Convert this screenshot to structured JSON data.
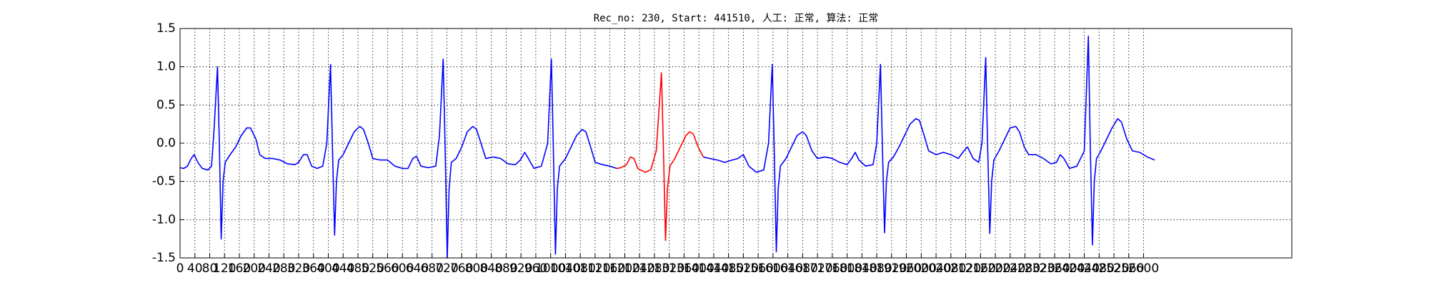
{
  "chart_data": {
    "type": "line",
    "title": "Rec_no: 230, Start: 441510, 人工: 正常, 算法: 正常",
    "xlim": [
      0,
      3000
    ],
    "ylim": [
      -1.5,
      1.5
    ],
    "grid": true,
    "xticks": [
      0,
      40,
      80,
      120,
      160,
      200,
      240,
      280,
      320,
      360,
      400,
      440,
      480,
      520,
      560,
      600,
      640,
      680,
      720,
      760,
      800,
      840,
      880,
      920,
      960,
      1000,
      1040,
      1080,
      1120,
      1160,
      1200,
      1240,
      1280,
      1320,
      1360,
      1400,
      1440,
      1480,
      1520,
      1560,
      1600,
      1640,
      1680,
      1720,
      1760,
      1800,
      1840,
      1880,
      1920,
      1960,
      2000,
      2040,
      2080,
      2120,
      2160,
      2200,
      2240,
      2280,
      2320,
      2360,
      2400,
      2440,
      2480,
      2520,
      2560,
      2600
    ],
    "yticks": [
      -1.5,
      {
        "value": -1.0,
        "label": "-1.0"
      },
      -0.5,
      {
        "value": 0.0,
        "label": "0.0"
      },
      0.5,
      {
        "value": 1.0,
        "label": "1.0"
      },
      1.5
    ],
    "series": [
      {
        "color": "#0000ff",
        "x": [
          0,
          10,
          20,
          30,
          38,
          48,
          60,
          75,
          85,
          92,
          101,
          106,
          111,
          116,
          122,
          135,
          150,
          165,
          180,
          190,
          205,
          215,
          230,
          250,
          270,
          290,
          310,
          320,
          333,
          343,
          355,
          370,
          385,
          396,
          406,
          411,
          417,
          422,
          428,
          440,
          455,
          470,
          485,
          495,
          508,
          520,
          540,
          560,
          580,
          600,
          615,
          628,
          638,
          650,
          670,
          690,
          700,
          710,
          715,
          721,
          726,
          732,
          745,
          760,
          775,
          790,
          800,
          812,
          825,
          845,
          865,
          885,
          905,
          918,
          930,
          940,
          955,
          975,
          992,
          1002,
          1007,
          1013,
          1018,
          1024,
          1040,
          1055,
          1070,
          1085,
          1095,
          1108,
          1120,
          1140,
          1160,
          1178,
          1300,
          1412,
          1430,
          1450,
          1470,
          1490,
          1505,
          1520,
          1535,
          1555,
          1575,
          1588,
          1598,
          1603,
          1609,
          1614,
          1620,
          1635,
          1650,
          1665,
          1680,
          1690,
          1705,
          1720,
          1740,
          1760,
          1780,
          1800,
          1812,
          1822,
          1832,
          1850,
          1870,
          1880,
          1890,
          1895,
          1901,
          1906,
          1912,
          1925,
          1940,
          1955,
          1970,
          1985,
          1995,
          2008,
          2020,
          2040,
          2060,
          2080,
          2100,
          2115,
          2125,
          2140,
          2155,
          2164,
          2174,
          2179,
          2185,
          2190,
          2196,
          2210,
          2225,
          2240,
          2255,
          2265,
          2278,
          2290,
          2310,
          2330,
          2350,
          2365,
          2375,
          2385,
          2400,
          2420,
          2440,
          2451,
          2456,
          2462,
          2467,
          2473,
          2485,
          2500,
          2515,
          2530,
          2540,
          2555,
          2570,
          2590,
          2610,
          2630
        ],
        "values": [
          -0.32,
          -0.33,
          -0.3,
          -0.2,
          -0.15,
          -0.25,
          -0.33,
          -0.35,
          -0.3,
          0.2,
          1.0,
          0.0,
          -1.25,
          -0.5,
          -0.25,
          -0.15,
          -0.05,
          0.1,
          0.2,
          0.2,
          0.05,
          -0.15,
          -0.2,
          -0.2,
          -0.22,
          -0.27,
          -0.28,
          -0.25,
          -0.15,
          -0.15,
          -0.3,
          -0.33,
          -0.3,
          0.0,
          1.03,
          0.0,
          -1.2,
          -0.5,
          -0.22,
          -0.15,
          0.0,
          0.15,
          0.22,
          0.18,
          0.0,
          -0.2,
          -0.22,
          -0.22,
          -0.3,
          -0.33,
          -0.33,
          -0.2,
          -0.17,
          -0.3,
          -0.32,
          -0.3,
          0.1,
          1.1,
          0.0,
          -1.5,
          -0.6,
          -0.25,
          -0.2,
          -0.05,
          0.15,
          0.22,
          0.18,
          0.0,
          -0.2,
          -0.18,
          -0.2,
          -0.27,
          -0.28,
          -0.22,
          -0.12,
          -0.2,
          -0.33,
          -0.3,
          0.0,
          1.1,
          0.0,
          -1.45,
          -0.6,
          -0.3,
          -0.2,
          -0.05,
          0.1,
          0.18,
          0.15,
          -0.05,
          -0.25,
          -0.28,
          -0.3,
          -0.33,
          null,
          -0.18,
          -0.2,
          -0.22,
          -0.25,
          -0.22,
          -0.2,
          -0.15,
          -0.3,
          -0.38,
          -0.35,
          0.0,
          1.03,
          0.0,
          -1.42,
          -0.6,
          -0.3,
          -0.2,
          -0.05,
          0.1,
          0.15,
          0.1,
          -0.1,
          -0.2,
          -0.18,
          -0.2,
          -0.25,
          -0.28,
          -0.2,
          -0.12,
          -0.22,
          -0.3,
          -0.28,
          0.0,
          1.03,
          0.0,
          -1.17,
          -0.5,
          -0.25,
          -0.18,
          -0.05,
          0.1,
          0.25,
          0.32,
          0.3,
          0.1,
          -0.1,
          -0.15,
          -0.12,
          -0.15,
          -0.2,
          -0.1,
          -0.05,
          -0.2,
          -0.25,
          0.0,
          1.12,
          0.0,
          -1.18,
          -0.5,
          -0.22,
          -0.1,
          0.05,
          0.2,
          0.22,
          0.15,
          -0.05,
          -0.15,
          -0.15,
          -0.2,
          -0.27,
          -0.25,
          -0.15,
          -0.2,
          -0.33,
          -0.3,
          -0.1,
          1.4,
          0.0,
          -1.33,
          -0.5,
          -0.2,
          -0.1,
          0.05,
          0.2,
          0.32,
          0.28,
          0.05,
          -0.1,
          -0.12,
          -0.18,
          -0.22
        ]
      },
      {
        "color": "#ff0000",
        "x": [
          1178,
          1190,
          1205,
          1215,
          1225,
          1235,
          1255,
          1270,
          1285,
          1299,
          1304,
          1310,
          1315,
          1322,
          1335,
          1350,
          1365,
          1375,
          1385,
          1398,
          1412
        ],
        "values": [
          -0.33,
          -0.32,
          -0.28,
          -0.18,
          -0.2,
          -0.33,
          -0.38,
          -0.35,
          -0.1,
          0.92,
          0.0,
          -1.27,
          -0.6,
          -0.3,
          -0.2,
          -0.05,
          0.1,
          0.15,
          0.12,
          -0.05,
          -0.18
        ]
      }
    ]
  }
}
